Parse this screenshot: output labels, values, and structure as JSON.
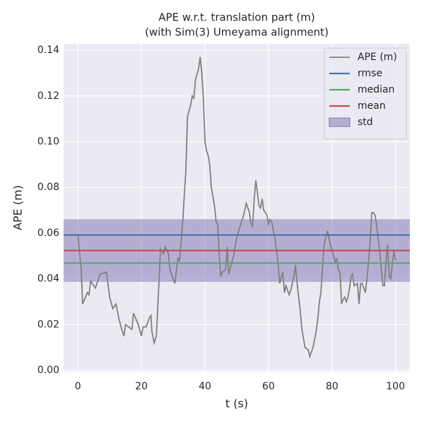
{
  "chart_data": {
    "type": "line",
    "title": "APE w.r.t. translation part (m)",
    "subtitle": "(with Sim(3) Umeyama alignment)",
    "x_label": "t (s)",
    "y_label": "APE (m)",
    "xlim": [
      -4.5,
      104.5
    ],
    "ylim": [
      -0.0006,
      0.1428
    ],
    "xticks": [
      0,
      20,
      40,
      60,
      80,
      100
    ],
    "yticks": [
      {
        "value": 0,
        "label": "0.00"
      },
      {
        "value": 0.02,
        "label": "0.02"
      },
      {
        "value": 0.04,
        "label": "0.04"
      },
      {
        "value": 0.06,
        "label": "0.06"
      },
      {
        "value": 0.08,
        "label": "0.08"
      },
      {
        "value": 0.1,
        "label": "0.10"
      },
      {
        "value": 0.12,
        "label": "0.12"
      },
      {
        "value": 0.14,
        "label": "0.14"
      }
    ],
    "grid": true,
    "legend": "upper right",
    "series": [
      {
        "name": "APE (m)",
        "color": "#808080",
        "x": [
          0,
          1,
          1.5,
          3,
          3.5,
          4,
          5.5,
          7,
          9,
          10,
          11,
          12,
          13,
          14,
          14.5,
          15,
          17,
          17.5,
          19,
          20,
          20.5,
          21.5,
          22.5,
          23,
          23.3,
          24,
          24.7,
          25.5,
          26,
          27,
          27.5,
          28.5,
          29,
          30.5,
          31.5,
          32,
          33,
          34,
          34.5,
          35.5,
          36,
          36.5,
          37,
          38,
          38.5,
          39,
          39.5,
          40,
          40.5,
          41,
          41.5,
          42,
          43,
          43.5,
          44,
          44.5,
          45,
          45.5,
          46.5,
          47,
          47.5,
          49,
          50,
          51,
          52,
          53,
          54,
          54.5,
          55,
          55.5,
          56,
          56.5,
          57,
          57.5,
          58,
          58.5,
          59,
          59.5,
          60,
          60.5,
          61,
          62,
          63,
          63.5,
          64.5,
          65,
          65.5,
          66.5,
          67,
          68,
          68.5,
          69,
          70,
          70.5,
          71.5,
          72.5,
          73,
          74,
          75,
          75.5,
          76,
          76.5,
          77,
          77.5,
          78.5,
          79.5,
          80.5,
          81,
          81.5,
          82,
          82.5,
          83,
          83.5,
          84,
          84.5,
          85,
          85.5,
          86,
          86.5,
          87,
          88,
          88.5,
          89,
          89.5,
          90.5,
          91,
          92,
          92.5,
          93,
          93.5,
          94,
          95,
          96,
          96.5,
          97,
          97.5,
          98,
          98.5,
          99,
          99.5,
          100
        ],
        "values": [
          0.059,
          0.045,
          0.029,
          0.034,
          0.033,
          0.039,
          0.036,
          0.042,
          0.043,
          0.032,
          0.027,
          0.029,
          0.022,
          0.017,
          0.015,
          0.02,
          0.018,
          0.025,
          0.02,
          0.015,
          0.019,
          0.019,
          0.023,
          0.024,
          0.017,
          0.012,
          0.015,
          0.038,
          0.053,
          0.051,
          0.054,
          0.051,
          0.044,
          0.038,
          0.049,
          0.048,
          0.065,
          0.088,
          0.111,
          0.116,
          0.12,
          0.119,
          0.127,
          0.132,
          0.137,
          0.13,
          0.119,
          0.1,
          0.096,
          0.094,
          0.09,
          0.08,
          0.072,
          0.065,
          0.064,
          0.05,
          0.041,
          0.043,
          0.044,
          0.054,
          0.042,
          0.05,
          0.058,
          0.063,
          0.067,
          0.073,
          0.069,
          0.064,
          0.063,
          0.075,
          0.083,
          0.078,
          0.072,
          0.071,
          0.075,
          0.07,
          0.069,
          0.068,
          0.064,
          0.066,
          0.065,
          0.058,
          0.047,
          0.038,
          0.043,
          0.034,
          0.037,
          0.033,
          0.035,
          0.041,
          0.046,
          0.038,
          0.026,
          0.018,
          0.01,
          0.009,
          0.006,
          0.01,
          0.017,
          0.022,
          0.03,
          0.034,
          0.045,
          0.055,
          0.061,
          0.055,
          0.05,
          0.047,
          0.049,
          0.044,
          0.043,
          0.029,
          0.031,
          0.032,
          0.03,
          0.032,
          0.036,
          0.041,
          0.042,
          0.037,
          0.038,
          0.029,
          0.038,
          0.038,
          0.034,
          0.04,
          0.056,
          0.069,
          0.069,
          0.068,
          0.064,
          0.052,
          0.037,
          0.037,
          0.048,
          0.055,
          0.041,
          0.04,
          0.047,
          0.052,
          0.048
        ]
      }
    ],
    "lines": [
      {
        "name": "rmse",
        "color": "#4c72b0",
        "value": 0.0592
      },
      {
        "name": "median",
        "color": "#55a868",
        "value": 0.0469
      },
      {
        "name": "mean",
        "color": "#c44e52",
        "value": 0.0524
      }
    ],
    "band": {
      "name": "std",
      "color": "#8172b2",
      "value": 0.0137
    }
  }
}
